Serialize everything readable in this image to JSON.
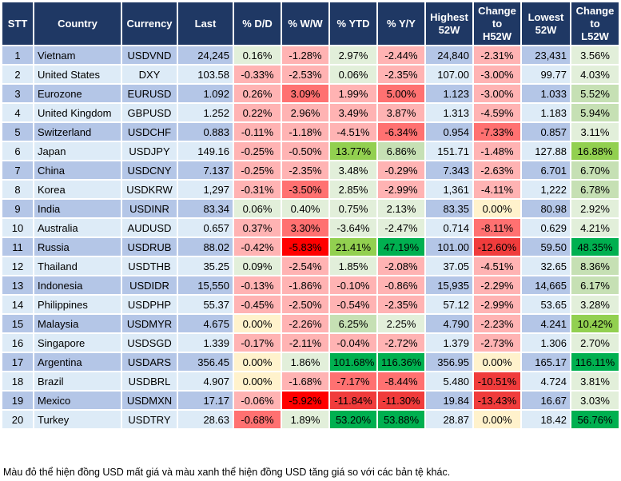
{
  "headers": [
    "STT",
    "Country",
    "Currency",
    "Last",
    "% D/D",
    "% W/W",
    "% YTD",
    "% Y/Y",
    "Highest 52W",
    "Change to H52W",
    "Lowest 52W",
    "Change to L52W"
  ],
  "rows": [
    [
      "1",
      "Vietnam",
      "USDVND",
      "24,245",
      "0.16%",
      "-1.28%",
      "2.97%",
      "-2.44%",
      "24,840",
      "-2.31%",
      "23,431",
      "3.56%"
    ],
    [
      "2",
      "United States",
      "DXY",
      "103.58",
      "-0.33%",
      "-2.53%",
      "0.06%",
      "-2.35%",
      "107.00",
      "-3.00%",
      "99.77",
      "4.03%"
    ],
    [
      "3",
      "Eurozone",
      "EURUSD",
      "1.092",
      "0.26%",
      "3.09%",
      "1.99%",
      "5.00%",
      "1.123",
      "-3.00%",
      "1.033",
      "5.52%"
    ],
    [
      "4",
      "United Kingdom",
      "GBPUSD",
      "1.252",
      "0.22%",
      "2.96%",
      "3.49%",
      "3.87%",
      "1.313",
      "-4.59%",
      "1.183",
      "5.94%"
    ],
    [
      "5",
      "Switzerland",
      "USDCHF",
      "0.883",
      "-0.11%",
      "-1.18%",
      "-4.51%",
      "-6.34%",
      "0.954",
      "-7.33%",
      "0.857",
      "3.11%"
    ],
    [
      "6",
      "Japan",
      "USDJPY",
      "149.16",
      "-0.25%",
      "-0.50%",
      "13.77%",
      "6.86%",
      "151.71",
      "-1.48%",
      "127.88",
      "16.88%"
    ],
    [
      "7",
      "China",
      "USDCNY",
      "7.137",
      "-0.25%",
      "-2.35%",
      "3.48%",
      "-0.29%",
      "7.343",
      "-2.63%",
      "6.701",
      "6.70%"
    ],
    [
      "8",
      "Korea",
      "USDKRW",
      "1,297",
      "-0.31%",
      "-3.50%",
      "2.85%",
      "-2.99%",
      "1,361",
      "-4.11%",
      "1,222",
      "6.78%"
    ],
    [
      "9",
      "India",
      "USDINR",
      "83.34",
      "0.06%",
      "0.40%",
      "0.75%",
      "2.13%",
      "83.35",
      "0.00%",
      "80.98",
      "2.92%"
    ],
    [
      "10",
      "Australia",
      "AUDUSD",
      "0.657",
      "0.37%",
      "3.30%",
      "-3.64%",
      "-2.47%",
      "0.714",
      "-8.11%",
      "0.629",
      "4.21%"
    ],
    [
      "11",
      "Russia",
      "USDRUB",
      "88.02",
      "-0.42%",
      "-5.83%",
      "21.41%",
      "47.19%",
      "101.00",
      "-12.60%",
      "59.50",
      "48.35%"
    ],
    [
      "12",
      "Thailand",
      "USDTHB",
      "35.25",
      "0.09%",
      "-2.54%",
      "1.85%",
      "-2.08%",
      "37.05",
      "-4.51%",
      "32.65",
      "8.36%"
    ],
    [
      "13",
      "Indonesia",
      "USDIDR",
      "15,550",
      "-0.13%",
      "-1.86%",
      "-0.10%",
      "-0.86%",
      "15,935",
      "-2.29%",
      "14,665",
      "6.17%"
    ],
    [
      "14",
      "Philippines",
      "USDPHP",
      "55.37",
      "-0.45%",
      "-2.50%",
      "-0.54%",
      "-2.35%",
      "57.12",
      "-2.99%",
      "53.65",
      "3.28%"
    ],
    [
      "15",
      "Malaysia",
      "USDMYR",
      "4.675",
      "0.00%",
      "-2.26%",
      "6.25%",
      "2.25%",
      "4.790",
      "-2.23%",
      "4.241",
      "10.42%"
    ],
    [
      "16",
      "Singapore",
      "USDSGD",
      "1.339",
      "-0.17%",
      "-2.11%",
      "-0.04%",
      "-2.72%",
      "1.379",
      "-2.73%",
      "1.306",
      "2.70%"
    ],
    [
      "17",
      "Argentina",
      "USDARS",
      "356.45",
      "0.00%",
      "1.86%",
      "101.68%",
      "116.36%",
      "356.95",
      "0.00%",
      "165.17",
      "116.11%"
    ],
    [
      "18",
      "Brazil",
      "USDBRL",
      "4.907",
      "0.00%",
      "-1.68%",
      "-7.17%",
      "-8.44%",
      "5.480",
      "-10.51%",
      "4.724",
      "3.81%"
    ],
    [
      "19",
      "Mexico",
      "USDMXN",
      "17.17",
      "-0.06%",
      "-5.92%",
      "-11.84%",
      "-11.30%",
      "19.84",
      "-13.43%",
      "16.67",
      "3.03%"
    ],
    [
      "20",
      "Turkey",
      "USDTRY",
      "28.63",
      "-0.68%",
      "1.89%",
      "53.20%",
      "53.88%",
      "28.87",
      "0.00%",
      "18.42",
      "56.76%"
    ]
  ],
  "cell_colors": [
    [
      "g1",
      "r1",
      "g1",
      "r1",
      "r1",
      "g1"
    ],
    [
      "r1",
      "r1",
      "g1",
      "r1",
      "r1",
      "g1"
    ],
    [
      "r1",
      "r2",
      "r1",
      "r2",
      "r1",
      "g2"
    ],
    [
      "r1",
      "r1",
      "r1",
      "r1",
      "r1",
      "g2"
    ],
    [
      "r1",
      "r1",
      "r1",
      "r2",
      "r2",
      "g1"
    ],
    [
      "r1",
      "r1",
      "g3",
      "g2",
      "r1",
      "g3"
    ],
    [
      "r1",
      "r1",
      "g1",
      "r1",
      "r1",
      "g2"
    ],
    [
      "r1",
      "r2",
      "g1",
      "r1",
      "r1",
      "g2"
    ],
    [
      "g1",
      "g1",
      "g1",
      "g1",
      "y",
      "g1"
    ],
    [
      "r1",
      "r2",
      "g1",
      "g1",
      "r2",
      "g1"
    ],
    [
      "r1",
      "r4",
      "g3",
      "g4",
      "r3",
      "g4"
    ],
    [
      "g1",
      "r1",
      "g1",
      "r1",
      "r1",
      "g2"
    ],
    [
      "r1",
      "r1",
      "r1",
      "r1",
      "r1",
      "g2"
    ],
    [
      "r1",
      "r1",
      "r1",
      "r1",
      "r1",
      "g1"
    ],
    [
      "y",
      "r1",
      "g2",
      "g1",
      "r1",
      "g3"
    ],
    [
      "r1",
      "r1",
      "r1",
      "r1",
      "r1",
      "g1"
    ],
    [
      "y",
      "g1",
      "g4",
      "g4",
      "y",
      "g4"
    ],
    [
      "y",
      "r1",
      "r2",
      "r2",
      "r3",
      "g1"
    ],
    [
      "r1",
      "r4",
      "r3",
      "r3",
      "r3",
      "g1"
    ],
    [
      "r2",
      "g1",
      "g4",
      "g4",
      "y",
      "g4"
    ]
  ],
  "footnote": "Màu đỏ thể hiện đồng USD mất giá và màu xanh thể hiện đồng USD tăng giá so với các bản tệ khác."
}
